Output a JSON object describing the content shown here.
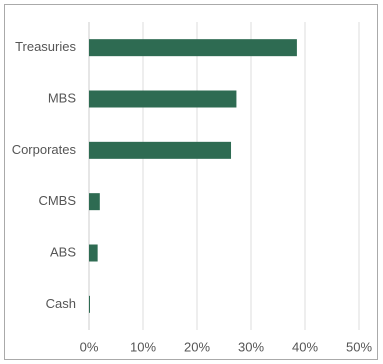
{
  "chart_data": {
    "type": "bar",
    "orientation": "horizontal",
    "categories": [
      "Treasuries",
      "MBS",
      "Corporates",
      "CMBS",
      "ABS",
      "Cash"
    ],
    "values": [
      38.5,
      27.3,
      26.3,
      2.0,
      1.6,
      0.1
    ],
    "xlim": [
      0,
      50
    ],
    "x_ticks": [
      "0%",
      "10%",
      "20%",
      "30%",
      "40%",
      "50%"
    ],
    "bar_color": "#2e6b52",
    "grid": true
  }
}
